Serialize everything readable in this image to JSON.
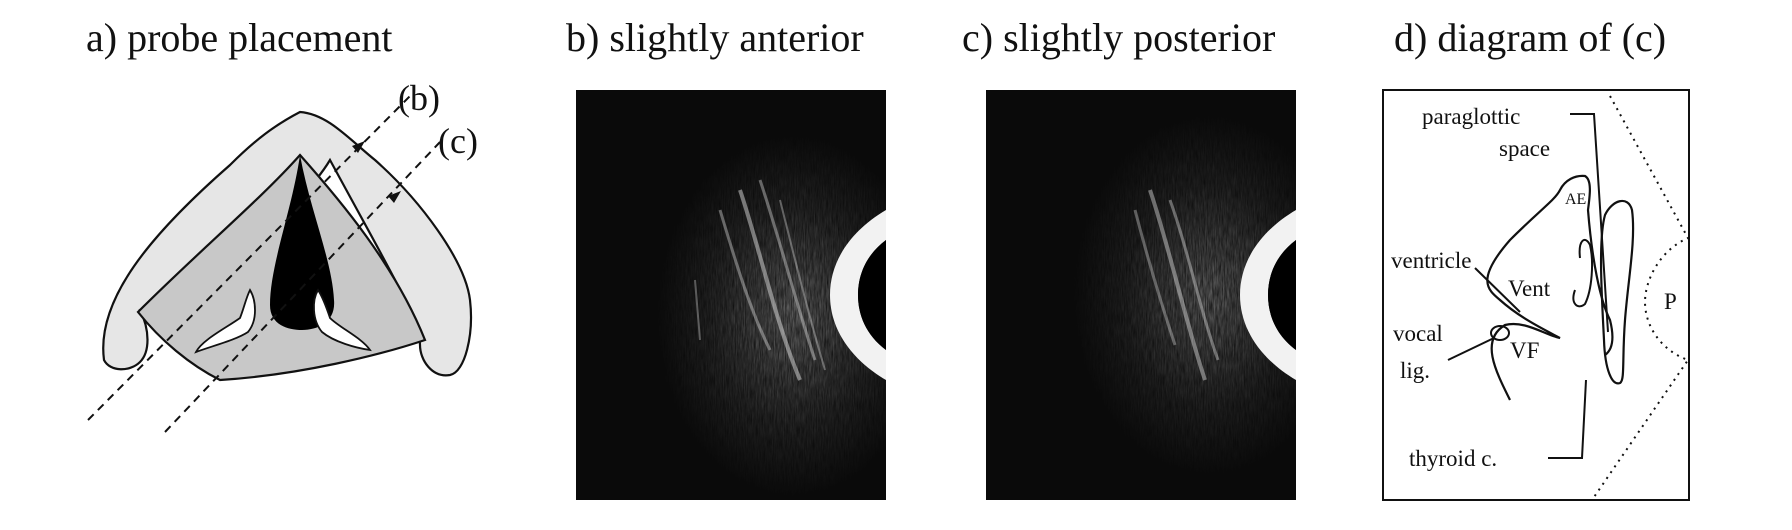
{
  "panels": {
    "a": {
      "title": "a) probe placement",
      "line_b": "(b)",
      "line_c": "(c)"
    },
    "b": {
      "title": "b) slightly anterior"
    },
    "c": {
      "title": "c) slightly posterior"
    },
    "d": {
      "title": "d) diagram of (c)",
      "labels": {
        "paraglottic_1": "paraglottic",
        "paraglottic_2": "space",
        "ae": "AE",
        "ventricle": "ventricle",
        "vent": "Vent",
        "vocal_1": "vocal",
        "vocal_2": "lig.",
        "vf": "VF",
        "p": "P",
        "thyroid": "thyroid c."
      }
    }
  },
  "colors": {
    "cartilage_fill": "#e6e6e6",
    "interior_fill": "#c8c8c8",
    "ultrasound_bg": "#0a0a0a"
  }
}
